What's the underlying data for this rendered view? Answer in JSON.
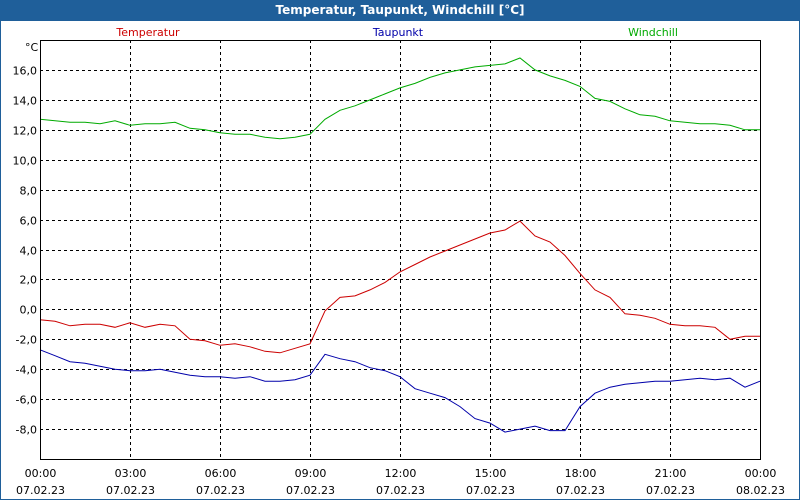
{
  "window": {
    "title": "Temperatur, Taupunkt, Windchill [°C]"
  },
  "chart_data": {
    "type": "line",
    "title": "Temperatur, Taupunkt, Windchill [°C]",
    "ylabel": "°C",
    "ylim": [
      -10,
      18
    ],
    "yticks": [
      "16,0",
      "14,0",
      "12,0",
      "10,0",
      "8,0",
      "6,0",
      "4,0",
      "2,0",
      "0,0",
      "-2,0",
      "-4,0",
      "-6,0",
      "-8,0"
    ],
    "ytick_values": [
      16,
      14,
      12,
      10,
      8,
      6,
      4,
      2,
      0,
      -2,
      -4,
      -6,
      -8
    ],
    "xlim_hours": [
      0,
      24
    ],
    "xticks": [
      {
        "time": "00:00",
        "date": "07.02.23"
      },
      {
        "time": "03:00",
        "date": "07.02.23"
      },
      {
        "time": "06:00",
        "date": "07.02.23"
      },
      {
        "time": "09:00",
        "date": "07.02.23"
      },
      {
        "time": "12:00",
        "date": "07.02.23"
      },
      {
        "time": "15:00",
        "date": "07.02.23"
      },
      {
        "time": "18:00",
        "date": "07.02.23"
      },
      {
        "time": "21:00",
        "date": "07.02.23"
      },
      {
        "time": "00:00",
        "date": "08.02.23"
      }
    ],
    "grid": true,
    "legend": "top",
    "series": [
      {
        "name": "Temperatur",
        "color": "#cc0000",
        "x": [
          0,
          0.5,
          1,
          1.5,
          2,
          2.5,
          3,
          3.5,
          4,
          4.5,
          5,
          5.5,
          6,
          6.5,
          7,
          7.5,
          8,
          8.5,
          9,
          9.5,
          10,
          10.5,
          11,
          11.5,
          12,
          12.5,
          13,
          13.5,
          14,
          14.5,
          15,
          15.5,
          16,
          16.5,
          17,
          17.5,
          18,
          18.5,
          19,
          19.5,
          20,
          20.5,
          21,
          21.5,
          22,
          22.5,
          23,
          23.5,
          24
        ],
        "y": [
          -0.7,
          -0.8,
          -1.1,
          -1.0,
          -1.0,
          -1.2,
          -0.9,
          -1.2,
          -1.0,
          -1.1,
          -2.0,
          -2.1,
          -2.4,
          -2.3,
          -2.5,
          -2.8,
          -2.9,
          -2.6,
          -2.3,
          -0.1,
          0.8,
          0.9,
          1.3,
          1.8,
          2.5,
          3.0,
          3.5,
          3.9,
          4.3,
          4.7,
          5.1,
          5.3,
          5.9,
          4.9,
          4.5,
          3.6,
          2.4,
          1.3,
          0.8,
          -0.3,
          -0.4,
          -0.6,
          -1.0,
          -1.1,
          -1.1,
          -1.2,
          -2.0,
          -1.8,
          -1.8
        ]
      },
      {
        "name": "Taupunkt",
        "color": "#0000aa",
        "x": [
          0,
          0.5,
          1,
          1.5,
          2,
          2.5,
          3,
          3.5,
          4,
          4.5,
          5,
          5.5,
          6,
          6.5,
          7,
          7.5,
          8,
          8.5,
          9,
          9.5,
          10,
          10.5,
          11,
          11.5,
          12,
          12.5,
          13,
          13.5,
          14,
          14.5,
          15,
          15.5,
          16,
          16.5,
          17,
          17.5,
          18,
          18.5,
          19,
          19.5,
          20,
          20.5,
          21,
          21.5,
          22,
          22.5,
          23,
          23.5,
          24
        ],
        "y": [
          -2.7,
          -3.1,
          -3.5,
          -3.6,
          -3.8,
          -4.0,
          -4.1,
          -4.1,
          -4.0,
          -4.2,
          -4.4,
          -4.5,
          -4.5,
          -4.6,
          -4.5,
          -4.8,
          -4.8,
          -4.7,
          -4.4,
          -3.0,
          -3.3,
          -3.5,
          -3.9,
          -4.1,
          -4.5,
          -5.3,
          -5.6,
          -5.9,
          -6.5,
          -7.3,
          -7.6,
          -8.2,
          -8.0,
          -7.8,
          -8.1,
          -8.1,
          -6.5,
          -5.6,
          -5.2,
          -5.0,
          -4.9,
          -4.8,
          -4.8,
          -4.7,
          -4.6,
          -4.7,
          -4.6,
          -5.2,
          -4.8
        ]
      },
      {
        "name": "Windchill",
        "color": "#00aa00",
        "x": [
          0,
          0.5,
          1,
          1.5,
          2,
          2.5,
          3,
          3.5,
          4,
          4.5,
          5,
          5.5,
          6,
          6.5,
          7,
          7.5,
          8,
          8.5,
          9,
          9.5,
          10,
          10.5,
          11,
          11.5,
          12,
          12.5,
          13,
          13.5,
          14,
          14.5,
          15,
          15.5,
          16,
          16.5,
          17,
          17.5,
          18,
          18.5,
          19,
          19.5,
          20,
          20.5,
          21,
          21.5,
          22,
          22.5,
          23,
          23.5,
          24
        ],
        "y": [
          12.7,
          12.6,
          12.5,
          12.5,
          12.4,
          12.6,
          12.3,
          12.4,
          12.4,
          12.5,
          12.1,
          12.0,
          11.8,
          11.7,
          11.7,
          11.5,
          11.4,
          11.5,
          11.7,
          12.7,
          13.3,
          13.6,
          14.0,
          14.4,
          14.8,
          15.1,
          15.5,
          15.8,
          16.0,
          16.2,
          16.3,
          16.4,
          16.8,
          16.0,
          15.6,
          15.3,
          14.9,
          14.1,
          13.9,
          13.4,
          13.0,
          12.9,
          12.6,
          12.5,
          12.4,
          12.4,
          12.3,
          12.0,
          12.0
        ]
      }
    ]
  }
}
